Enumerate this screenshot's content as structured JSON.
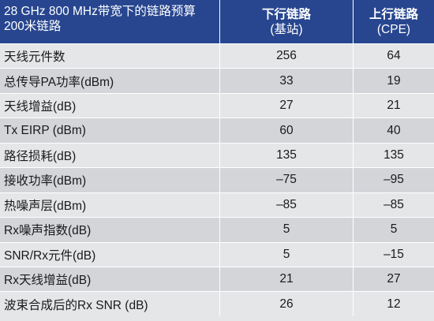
{
  "header": {
    "title_line1": "28 GHz 800 MHz带宽下的链路预算",
    "title_line2": "200米链路",
    "col2_line1": "下行链路",
    "col2_line2": "(基站)",
    "col3_line1": "上行链路",
    "col3_line2": "(CPE)"
  },
  "rows": [
    {
      "label": "天线元件数",
      "downlink": "256",
      "uplink": "64"
    },
    {
      "label": "总传导PA功率(dBm)",
      "downlink": "33",
      "uplink": "19"
    },
    {
      "label": "天线增益(dB)",
      "downlink": "27",
      "uplink": "21"
    },
    {
      "label": "Tx EIRP (dBm)",
      "downlink": "60",
      "uplink": "40"
    },
    {
      "label": "路径损耗(dB)",
      "downlink": "135",
      "uplink": "135"
    },
    {
      "label": "接收功率(dBm)",
      "downlink": "–75",
      "uplink": "–95"
    },
    {
      "label": "热噪声层(dBm)",
      "downlink": "–85",
      "uplink": "–85"
    },
    {
      "label": "Rx噪声指数(dB)",
      "downlink": "5",
      "uplink": "5"
    },
    {
      "label": "SNR/Rx元件(dB)",
      "downlink": "5",
      "uplink": "–15"
    },
    {
      "label": "Rx天线增益(dB)",
      "downlink": "21",
      "uplink": "27"
    },
    {
      "label": "波束合成后的Rx SNR (dB)",
      "downlink": "26",
      "uplink": "12"
    }
  ]
}
